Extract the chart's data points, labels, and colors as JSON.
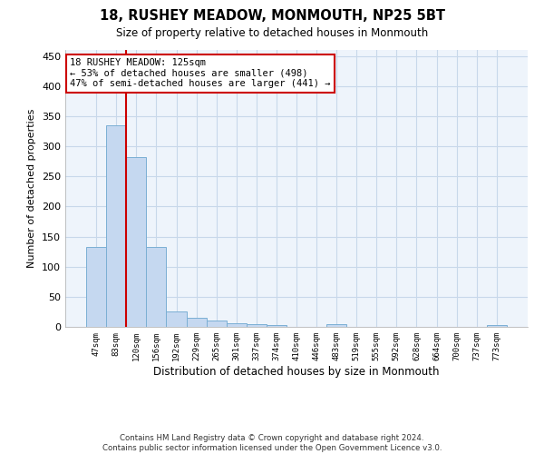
{
  "title": "18, RUSHEY MEADOW, MONMOUTH, NP25 5BT",
  "subtitle": "Size of property relative to detached houses in Monmouth",
  "xlabel": "Distribution of detached houses by size in Monmouth",
  "ylabel": "Number of detached properties",
  "bar_color": "#c5d8f0",
  "bar_edge_color": "#7bafd4",
  "grid_color": "#c8d8ea",
  "background_color": "#eef4fb",
  "vline_color": "#cc0000",
  "vline_x_index": 2,
  "annotation_text": "18 RUSHEY MEADOW: 125sqm\n← 53% of detached houses are smaller (498)\n47% of semi-detached houses are larger (441) →",
  "annotation_box_color": "#ffffff",
  "annotation_box_edge": "#cc0000",
  "footer_line1": "Contains HM Land Registry data © Crown copyright and database right 2024.",
  "footer_line2": "Contains public sector information licensed under the Open Government Licence v3.0.",
  "categories": [
    "47sqm",
    "83sqm",
    "120sqm",
    "156sqm",
    "192sqm",
    "229sqm",
    "265sqm",
    "301sqm",
    "337sqm",
    "374sqm",
    "410sqm",
    "446sqm",
    "483sqm",
    "519sqm",
    "555sqm",
    "592sqm",
    "628sqm",
    "664sqm",
    "700sqm",
    "737sqm",
    "773sqm"
  ],
  "values": [
    133,
    335,
    282,
    132,
    26,
    15,
    10,
    6,
    5,
    3,
    0,
    0,
    4,
    0,
    0,
    0,
    0,
    0,
    0,
    0,
    3
  ],
  "ylim": [
    0,
    460
  ],
  "yticks": [
    0,
    50,
    100,
    150,
    200,
    250,
    300,
    350,
    400,
    450
  ]
}
